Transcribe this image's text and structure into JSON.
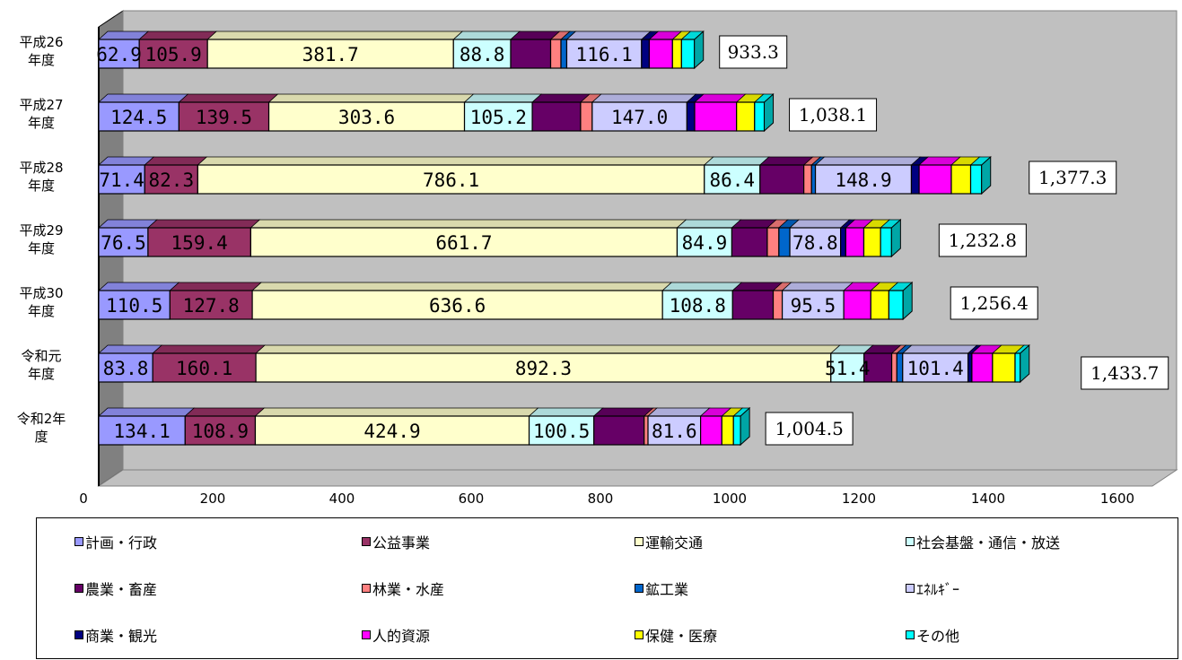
{
  "chart_data": {
    "type": "bar",
    "orientation": "horizontal",
    "stacked": true,
    "three_d": true,
    "categories": [
      "平成26\n年度",
      "平成27\n年度",
      "平成28\n年度",
      "平成29\n年度",
      "平成30\n年度",
      "令和元\n年度",
      "令和2年\n度"
    ],
    "xlim": [
      0,
      1600
    ],
    "x_ticks": [
      "0",
      "200",
      "400",
      "600",
      "800",
      "1000",
      "1200",
      "1400",
      "1600"
    ],
    "grid": false,
    "legend_position": "bottom",
    "series": [
      {
        "name": "計画・行政",
        "color": "#9999ff",
        "values": [
          62.9,
          124.5,
          71.4,
          76.5,
          110.5,
          83.8,
          134.1
        ],
        "labels": [
          "62.9",
          "124.5",
          "71.4",
          "76.5",
          "110.5",
          "83.8",
          "134.1"
        ]
      },
      {
        "name": "公益事業",
        "color": "#993366",
        "values": [
          105.9,
          139.5,
          82.3,
          159.4,
          127.8,
          160.1,
          108.9
        ],
        "labels": [
          "105.9",
          "139.5",
          "82.3",
          "159.4",
          "127.8",
          "160.1",
          "108.9"
        ]
      },
      {
        "name": "運輸交通",
        "color": "#ffffcc",
        "values": [
          381.7,
          303.6,
          786.1,
          661.7,
          636.6,
          892.3,
          424.9
        ],
        "labels": [
          "381.7",
          "303.6",
          "786.1",
          "661.7",
          "636.6",
          "892.3",
          "424.9"
        ]
      },
      {
        "name": "社会基盤・通信・放送",
        "color": "#ccffff",
        "values": [
          88.8,
          105.2,
          86.4,
          84.9,
          108.8,
          51.4,
          100.5
        ],
        "labels": [
          "88.8",
          "105.2",
          "86.4",
          "84.9",
          "108.8",
          "51.4",
          "100.5"
        ]
      },
      {
        "name": "農業・畜産",
        "color": "#660066",
        "values": [
          62,
          75,
          68,
          55,
          63,
          43,
          78
        ],
        "labels": [
          "",
          "",
          "",
          "",
          "",
          "",
          ""
        ]
      },
      {
        "name": "林業・水産",
        "color": "#ff8080",
        "values": [
          16,
          18,
          12,
          18,
          14,
          8,
          6
        ],
        "labels": [
          "",
          "",
          "",
          "",
          "",
          "",
          ""
        ]
      },
      {
        "name": "鉱工業",
        "color": "#0066cc",
        "values": [
          9,
          0,
          6,
          17,
          0,
          9,
          0
        ],
        "labels": [
          "",
          "",
          "",
          "",
          "",
          "",
          ""
        ]
      },
      {
        "name": "ｴﾈﾙｷﾞｰ",
        "color": "#ccccff",
        "values": [
          116.1,
          147.0,
          148.9,
          78.8,
          95.5,
          101.4,
          81.6
        ],
        "labels": [
          "116.1",
          "147.0",
          "148.9",
          "78.8",
          "95.5",
          "101.4",
          "81.6"
        ]
      },
      {
        "name": "商業・観光",
        "color": "#000080",
        "values": [
          12,
          12,
          12,
          8,
          0,
          6,
          0
        ],
        "labels": [
          "",
          "",
          "",
          "",
          "",
          "",
          ""
        ]
      },
      {
        "name": "人的資源",
        "color": "#ff00ff",
        "values": [
          36,
          65,
          50,
          28,
          42,
          32,
          33
        ],
        "labels": [
          "",
          "",
          "",
          "",
          "",
          "",
          ""
        ]
      },
      {
        "name": "保健・医療",
        "color": "#ffff00",
        "values": [
          14,
          28,
          30,
          26,
          28,
          35,
          18
        ],
        "labels": [
          "",
          "",
          "",
          "",
          "",
          "",
          ""
        ]
      },
      {
        "name": "その他",
        "color": "#00ffff",
        "values": [
          20,
          15,
          17,
          17,
          22,
          8,
          11
        ],
        "labels": [
          "",
          "",
          "",
          "",
          "",
          "",
          ""
        ]
      }
    ],
    "totals": [
      "933.3",
      "1,038.1",
      "1,377.3",
      "1,232.8",
      "1,256.4",
      "1,433.7",
      "1,004.5"
    ]
  },
  "legend": {
    "items": [
      {
        "label": "計画・行政",
        "color": "#9999ff"
      },
      {
        "label": "公益事業",
        "color": "#993366"
      },
      {
        "label": "運輸交通",
        "color": "#ffffcc"
      },
      {
        "label": "社会基盤・通信・放送",
        "color": "#ccffff"
      },
      {
        "label": "農業・畜産",
        "color": "#660066"
      },
      {
        "label": "林業・水産",
        "color": "#ff8080"
      },
      {
        "label": "鉱工業",
        "color": "#0066cc"
      },
      {
        "label": "ｴﾈﾙｷﾞｰ",
        "color": "#ccccff"
      },
      {
        "label": "商業・観光",
        "color": "#000080"
      },
      {
        "label": "人的資源",
        "color": "#ff00ff"
      },
      {
        "label": "保健・医療",
        "color": "#ffff00"
      },
      {
        "label": "その他",
        "color": "#00ffff"
      }
    ]
  }
}
